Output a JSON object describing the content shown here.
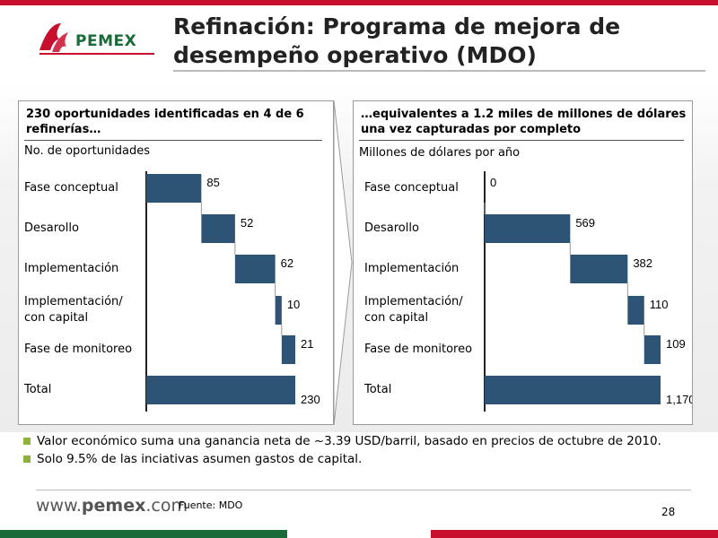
{
  "slide": {
    "title_line1": "Refinación: Programa de mejora de",
    "title_line2": "desempeño operativo (MDO)",
    "logo_text": "PEMEX",
    "footer_url_prefix": "www.",
    "footer_url_brand": "pemex",
    "footer_url_suffix": ".com",
    "source": "Fuente: MDO",
    "page_number": "28"
  },
  "colors": {
    "bar": "#2d5475",
    "accent_red": "#c8102e",
    "accent_green": "#1a6b3a",
    "bullet": "#8db33a"
  },
  "bullets": [
    "Valor económico suma una ganancia neta de ~3.39 USD/barril, basado en precios de octubre de 2010.",
    "Solo 9.5% de las inciativas asumen gastos de capital."
  ],
  "chart_data": [
    {
      "type": "bar",
      "subtype": "waterfall",
      "orientation": "horizontal",
      "title": "230 oportunidades identificadas en 4 de 6 refinerías…",
      "unit_label": "No. de oportunidades",
      "categories": [
        [
          "Fase conceptual"
        ],
        [
          "Desarollo"
        ],
        [
          "Implementación"
        ],
        [
          "Implementación/",
          "con capital"
        ],
        [
          "Fase de monitoreo"
        ],
        [
          "Total"
        ]
      ],
      "values": [
        85,
        52,
        62,
        10,
        21,
        230
      ],
      "value_labels": [
        "85",
        "52",
        "62",
        "10",
        "21",
        "230"
      ],
      "xlim": [
        0,
        230
      ]
    },
    {
      "type": "bar",
      "subtype": "waterfall",
      "orientation": "horizontal",
      "title": "…equivalentes a 1.2 miles de millones de dólares una vez capturadas por completo",
      "unit_label": "Millones de dólares por año",
      "categories": [
        [
          "Fase conceptual"
        ],
        [
          "Desarollo"
        ],
        [
          "Implementación"
        ],
        [
          "Implementación/",
          "con capital"
        ],
        [
          "Fase de monitoreo"
        ],
        [
          "Total"
        ]
      ],
      "values": [
        0,
        569,
        382,
        110,
        109,
        1170
      ],
      "value_labels": [
        "0",
        "569",
        "382",
        "110",
        "109",
        "1,170"
      ],
      "xlim": [
        0,
        1170
      ]
    }
  ]
}
